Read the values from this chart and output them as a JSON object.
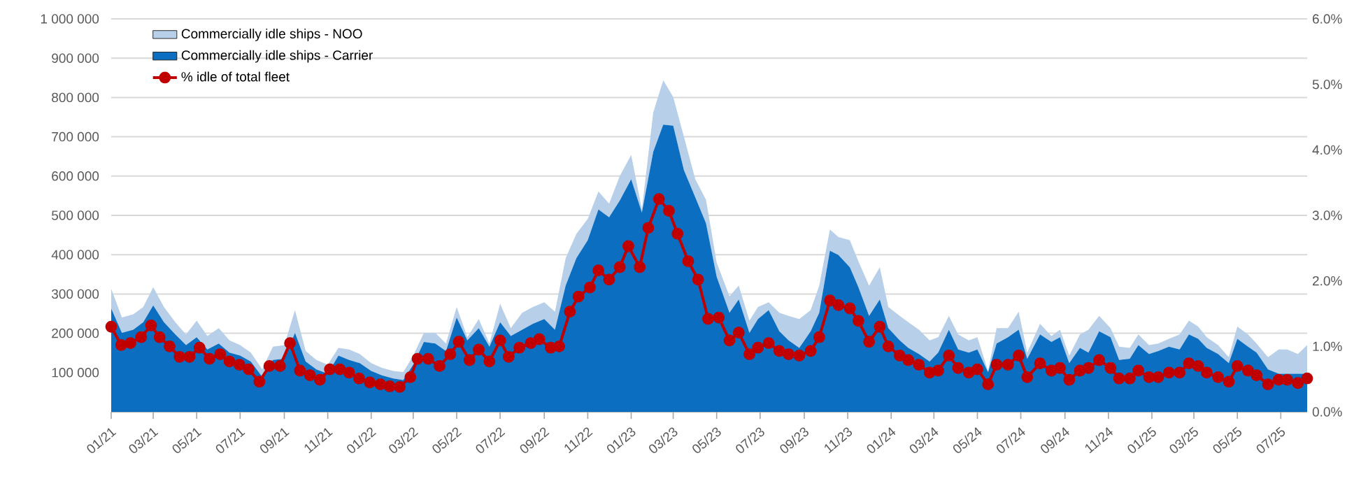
{
  "chart_data": {
    "type": "area",
    "stacked": true,
    "grid": "y",
    "legend": "top left",
    "x": [
      "2021-01-01",
      "2021-01-16",
      "2021-02-01",
      "2021-02-15",
      "2021-03-01",
      "2021-03-16",
      "2021-04-01",
      "2021-04-16",
      "2021-05-01",
      "2021-05-16",
      "2021-06-01",
      "2021-06-16",
      "2021-07-01",
      "2021-07-16",
      "2021-08-01",
      "2021-08-16",
      "2021-09-01",
      "2021-09-16",
      "2021-10-01",
      "2021-10-16",
      "2021-11-01",
      "2021-11-16",
      "2021-12-01",
      "2021-12-16",
      "2022-01-01",
      "2022-01-16",
      "2022-02-01",
      "2022-02-15",
      "2022-03-01",
      "2022-03-16",
      "2022-04-01",
      "2022-04-16",
      "2022-05-01",
      "2022-05-16",
      "2022-06-01",
      "2022-06-16",
      "2022-07-01",
      "2022-07-16",
      "2022-08-01",
      "2022-08-16",
      "2022-09-01",
      "2022-09-16",
      "2022-10-01",
      "2022-10-16",
      "2022-11-01",
      "2022-11-16",
      "2022-12-01",
      "2022-12-16",
      "2023-01-01",
      "2023-01-16",
      "2023-02-01",
      "2023-02-15",
      "2023-03-01",
      "2023-03-16",
      "2023-04-01",
      "2023-04-16",
      "2023-05-01",
      "2023-05-19",
      "2023-06-01",
      "2023-06-16",
      "2023-06-28",
      "2023-07-13",
      "2023-07-28",
      "2023-08-10",
      "2023-08-25",
      "2023-09-10",
      "2023-09-22",
      "2023-10-07",
      "2023-10-19",
      "2023-11-04",
      "2023-11-16",
      "2023-12-01",
      "2023-12-16",
      "2023-12-28",
      "2024-01-13",
      "2024-01-25",
      "2024-02-09",
      "2024-02-24",
      "2024-03-07",
      "2024-03-22",
      "2024-04-04",
      "2024-04-19",
      "2024-05-01",
      "2024-05-16",
      "2024-05-28",
      "2024-06-13",
      "2024-06-28",
      "2024-07-10",
      "2024-07-28",
      "2024-08-13",
      "2024-08-25",
      "2024-09-07",
      "2024-09-22",
      "2024-10-04",
      "2024-10-19",
      "2024-11-04",
      "2024-11-16",
      "2024-12-01",
      "2024-12-13",
      "2024-12-28",
      "2025-01-10",
      "2025-01-25",
      "2025-02-09",
      "2025-02-22",
      "2025-03-07",
      "2025-03-19",
      "2025-04-04",
      "2025-04-19",
      "2025-05-01",
      "2025-05-16",
      "2025-05-28",
      "2025-06-13",
      "2025-06-28",
      "2025-07-10",
      "2025-07-25",
      "2025-08-07"
    ],
    "xlim": [
      "2021-01-01",
      "2025-08-07"
    ],
    "xticks": [
      {
        "value": "2021-01-01",
        "label": "01/21"
      },
      {
        "value": "2021-03-01",
        "label": "03/21"
      },
      {
        "value": "2021-05-01",
        "label": "05/21"
      },
      {
        "value": "2021-07-01",
        "label": "07/21"
      },
      {
        "value": "2021-09-01",
        "label": "09/21"
      },
      {
        "value": "2021-11-01",
        "label": "11/21"
      },
      {
        "value": "2022-01-01",
        "label": "01/22"
      },
      {
        "value": "2022-03-01",
        "label": "03/22"
      },
      {
        "value": "2022-05-01",
        "label": "05/22"
      },
      {
        "value": "2022-07-01",
        "label": "07/22"
      },
      {
        "value": "2022-09-01",
        "label": "09/22"
      },
      {
        "value": "2022-11-01",
        "label": "11/22"
      },
      {
        "value": "2023-01-01",
        "label": "01/23"
      },
      {
        "value": "2023-03-01",
        "label": "03/23"
      },
      {
        "value": "2023-05-01",
        "label": "05/23"
      },
      {
        "value": "2023-07-01",
        "label": "07/23"
      },
      {
        "value": "2023-09-01",
        "label": "09/23"
      },
      {
        "value": "2023-11-01",
        "label": "11/23"
      },
      {
        "value": "2024-01-01",
        "label": "01/24"
      },
      {
        "value": "2024-03-01",
        "label": "03/24"
      },
      {
        "value": "2024-05-01",
        "label": "05/24"
      },
      {
        "value": "2024-07-01",
        "label": "07/24"
      },
      {
        "value": "2024-09-01",
        "label": "09/24"
      },
      {
        "value": "2024-11-01",
        "label": "11/24"
      },
      {
        "value": "2025-01-01",
        "label": "01/25"
      },
      {
        "value": "2025-03-01",
        "label": "03/25"
      },
      {
        "value": "2025-05-01",
        "label": "05/25"
      },
      {
        "value": "2025-07-01",
        "label": "07/25"
      }
    ],
    "ylim": [
      0,
      1000000
    ],
    "yticks": [
      {
        "value": 0,
        "label": null
      },
      {
        "value": 100000,
        "label": "100 000"
      },
      {
        "value": 200000,
        "label": "200 000"
      },
      {
        "value": 300000,
        "label": "300 000"
      },
      {
        "value": 400000,
        "label": "400 000"
      },
      {
        "value": 500000,
        "label": "500 000"
      },
      {
        "value": 600000,
        "label": "600 000"
      },
      {
        "value": 700000,
        "label": "700 000"
      },
      {
        "value": 800000,
        "label": "800 000"
      },
      {
        "value": 900000,
        "label": "900 000"
      },
      {
        "value": 1000000,
        "label": "1 000 000"
      }
    ],
    "y2lim": [
      0,
      6
    ],
    "y2ticks": [
      {
        "value": 0,
        "label": "0.0%"
      },
      {
        "value": 1,
        "label": "1.0%"
      },
      {
        "value": 2,
        "label": "2.0%"
      },
      {
        "value": 3,
        "label": "3.0%"
      },
      {
        "value": 4,
        "label": "4.0%"
      },
      {
        "value": 5,
        "label": "5.0%"
      },
      {
        "value": 6,
        "label": "6.0%"
      }
    ],
    "series": [
      {
        "name": "Commercially idle ships - Carrier",
        "color": "#0b6ec0",
        "values": [
          263000,
          201000,
          209000,
          228000,
          271000,
          228000,
          197000,
          170000,
          190000,
          159000,
          174000,
          151000,
          143000,
          128000,
          89000,
          132000,
          135000,
          201000,
          128000,
          108000,
          97000,
          143000,
          132000,
          124000,
          104000,
          93000,
          85000,
          81000,
          120000,
          178000,
          174000,
          155000,
          240000,
          182000,
          213000,
          166000,
          228000,
          193000,
          209000,
          224000,
          236000,
          209000,
          321000,
          391000,
          437000,
          515000,
          495000,
          538000,
          592000,
          507000,
          662000,
          731000,
          728000,
          615000,
          546000,
          480000,
          344000,
          252000,
          286000,
          201000,
          236000,
          259000,
          205000,
          182000,
          163000,
          205000,
          252000,
          410000,
          399000,
          368000,
          317000,
          244000,
          286000,
          213000,
          182000,
          163000,
          147000,
          128000,
          151000,
          209000,
          159000,
          151000,
          159000,
          101000,
          174000,
          190000,
          209000,
          135000,
          197000,
          178000,
          190000,
          124000,
          163000,
          151000,
          205000,
          190000,
          132000,
          135000,
          170000,
          147000,
          155000,
          166000,
          159000,
          197000,
          186000,
          163000,
          147000,
          124000,
          186000,
          166000,
          151000,
          108000,
          97000,
          97000,
          97000,
          97000
        ]
      },
      {
        "name": "Commercially idle ships - NOO",
        "color": "#b7cfe9",
        "values": [
          50000,
          39000,
          39000,
          39000,
          46000,
          39000,
          31000,
          27000,
          42000,
          34000,
          39000,
          31000,
          27000,
          23000,
          19000,
          34000,
          35000,
          58000,
          27000,
          24000,
          23000,
          20000,
          27000,
          23000,
          20000,
          19000,
          19000,
          20000,
          23000,
          23000,
          27000,
          19000,
          27000,
          8000,
          23000,
          8000,
          47000,
          20000,
          43000,
          43000,
          43000,
          46000,
          70000,
          62000,
          54000,
          46000,
          35000,
          62000,
          62000,
          8000,
          100000,
          113000,
          73000,
          85000,
          46000,
          60000,
          36000,
          42000,
          35000,
          31000,
          31000,
          20000,
          47000,
          62000,
          73000,
          54000,
          69000,
          54000,
          46000,
          69000,
          66000,
          77000,
          82000,
          54000,
          62000,
          65000,
          62000,
          54000,
          39000,
          35000,
          38000,
          31000,
          31000,
          3000,
          39000,
          23000,
          46000,
          16000,
          27000,
          15000,
          19000,
          19000,
          34000,
          58000,
          39000,
          23000,
          34000,
          28000,
          27000,
          23000,
          19000,
          20000,
          38000,
          35000,
          31000,
          27000,
          23000,
          15000,
          31000,
          31000,
          23000,
          31000,
          62000,
          62000,
          50000,
          73000
        ]
      },
      {
        "name": "% idle of total fleet",
        "type": "line",
        "axis": "y2",
        "color": "#c00000",
        "marker": "circle",
        "x": [
          "2021-01-01",
          "2021-01-15",
          "2021-01-28",
          "2021-02-12",
          "2021-02-26",
          "2021-03-10",
          "2021-03-24",
          "2021-04-07",
          "2021-04-21",
          "2021-05-05",
          "2021-05-19",
          "2021-06-03",
          "2021-06-16",
          "2021-06-30",
          "2021-07-13",
          "2021-07-28",
          "2021-08-11",
          "2021-08-26",
          "2021-09-09",
          "2021-09-23",
          "2021-10-07",
          "2021-10-21",
          "2021-11-04",
          "2021-11-18",
          "2021-12-01",
          "2021-12-15",
          "2021-12-30",
          "2022-01-14",
          "2022-01-27",
          "2022-02-10",
          "2022-02-25",
          "2022-03-07",
          "2022-03-22",
          "2022-04-07",
          "2022-04-22",
          "2022-05-04",
          "2022-05-19",
          "2022-06-01",
          "2022-06-16",
          "2022-07-01",
          "2022-07-13",
          "2022-07-28",
          "2022-08-13",
          "2022-08-25",
          "2022-09-10",
          "2022-09-22",
          "2022-10-07",
          "2022-10-19",
          "2022-11-04",
          "2022-11-16",
          "2022-12-01",
          "2022-12-16",
          "2022-12-28",
          "2023-01-13",
          "2023-01-25",
          "2023-02-09",
          "2023-02-23",
          "2023-03-07",
          "2023-03-22",
          "2023-04-05",
          "2023-04-19",
          "2023-05-04",
          "2023-05-19",
          "2023-06-01",
          "2023-06-16",
          "2023-06-28",
          "2023-07-13",
          "2023-07-28",
          "2023-08-10",
          "2023-08-25",
          "2023-09-10",
          "2023-09-22",
          "2023-10-07",
          "2023-10-19",
          "2023-11-04",
          "2023-11-16",
          "2023-12-01",
          "2023-12-16",
          "2023-12-28",
          "2024-01-13",
          "2024-01-25",
          "2024-02-09",
          "2024-02-24",
          "2024-03-07",
          "2024-03-22",
          "2024-04-04",
          "2024-04-19",
          "2024-05-01",
          "2024-05-16",
          "2024-05-28",
          "2024-06-13",
          "2024-06-28",
          "2024-07-10",
          "2024-07-28",
          "2024-08-13",
          "2024-08-25",
          "2024-09-07",
          "2024-09-22",
          "2024-10-04",
          "2024-10-19",
          "2024-11-04",
          "2024-11-16",
          "2024-12-01",
          "2024-12-13",
          "2024-12-28",
          "2025-01-10",
          "2025-01-25",
          "2025-02-09",
          "2025-02-22",
          "2025-03-07",
          "2025-03-19",
          "2025-04-04",
          "2025-04-19",
          "2025-05-01",
          "2025-05-16",
          "2025-05-28",
          "2025-06-13",
          "2025-06-28",
          "2025-07-10",
          "2025-07-25",
          "2025-08-07"
        ],
        "values": [
          1.3,
          1.02,
          1.05,
          1.14,
          1.32,
          1.14,
          1.0,
          0.84,
          0.84,
          0.98,
          0.81,
          0.88,
          0.77,
          0.72,
          0.65,
          0.46,
          0.7,
          0.7,
          1.05,
          0.63,
          0.56,
          0.49,
          0.65,
          0.65,
          0.6,
          0.51,
          0.45,
          0.42,
          0.39,
          0.38,
          0.53,
          0.81,
          0.81,
          0.7,
          0.88,
          1.07,
          0.79,
          0.95,
          0.77,
          1.09,
          0.84,
          0.98,
          1.05,
          1.11,
          0.98,
          1.0,
          1.53,
          1.76,
          1.9,
          2.16,
          2.02,
          2.21,
          2.53,
          2.21,
          2.81,
          3.25,
          3.07,
          2.72,
          2.3,
          2.02,
          1.42,
          1.44,
          1.09,
          1.21,
          0.88,
          0.98,
          1.05,
          0.93,
          0.88,
          0.86,
          0.93,
          1.14,
          1.7,
          1.63,
          1.58,
          1.39,
          1.07,
          1.3,
          1.0,
          0.86,
          0.79,
          0.72,
          0.6,
          0.63,
          0.86,
          0.67,
          0.6,
          0.65,
          0.42,
          0.72,
          0.72,
          0.86,
          0.53,
          0.74,
          0.63,
          0.67,
          0.49,
          0.63,
          0.67,
          0.79,
          0.67,
          0.51,
          0.51,
          0.63,
          0.53,
          0.53,
          0.6,
          0.6,
          0.74,
          0.7,
          0.6,
          0.53,
          0.46,
          0.7,
          0.63,
          0.56,
          0.42,
          0.49,
          0.49,
          0.44,
          0.51
        ]
      }
    ]
  }
}
